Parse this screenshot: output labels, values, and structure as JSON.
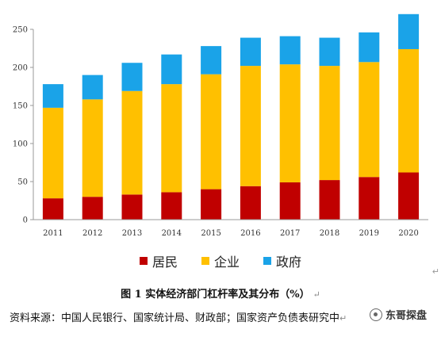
{
  "chart_data": {
    "type": "bar",
    "stacked": true,
    "categories": [
      "2011",
      "2012",
      "2013",
      "2014",
      "2015",
      "2016",
      "2017",
      "2018",
      "2019",
      "2020"
    ],
    "series": [
      {
        "name": "居民",
        "color": "#C00000",
        "values": [
          28,
          30,
          33,
          36,
          40,
          44,
          49,
          52,
          56,
          62
        ]
      },
      {
        "name": "企业",
        "color": "#FFC000",
        "values": [
          119,
          128,
          136,
          142,
          151,
          158,
          155,
          150,
          151,
          162
        ]
      },
      {
        "name": "政府",
        "color": "#1AA3E8",
        "values": [
          31,
          32,
          37,
          39,
          37,
          37,
          37,
          37,
          39,
          46
        ]
      }
    ],
    "ylim": [
      0,
      250
    ],
    "yticks": [
      "0",
      "50",
      "100",
      "150",
      "200",
      "250"
    ],
    "grid": false,
    "legend_position": "bottom"
  },
  "caption": {
    "text": "图 1  实体经济部门杠杆率及其分布（%）",
    "mark": "↵"
  },
  "source": {
    "text": "资料来源：中国人民银行、国家统计局、财政部；国家资产负债表研究中",
    "mark": "↵"
  },
  "watermark": {
    "icon": "wechat-icon",
    "text": "东哥探盘"
  },
  "side_mark": "↵"
}
